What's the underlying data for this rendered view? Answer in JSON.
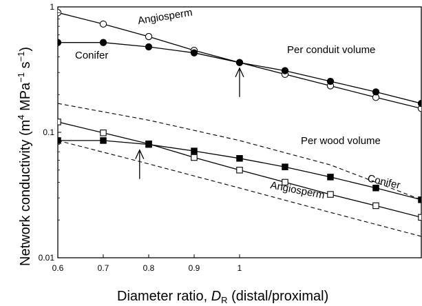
{
  "chart_data": {
    "type": "line",
    "xscale": "linear",
    "yscale": "log",
    "xlim": [
      0.6,
      1.4
    ],
    "ylim": [
      0.01,
      1
    ],
    "grid": false,
    "xlabel_main": "Diameter ratio, ",
    "xlabel_var": "D",
    "xlabel_sub": "R",
    "xlabel_tail": " (distal/proximal)",
    "ylabel_main": "Network conductivity (m",
    "ylabel_sup1": "4",
    "ylabel_mid": " MPa",
    "ylabel_sup2": "−1",
    "ylabel_s": " s",
    "ylabel_sup3": "−1",
    "ylabel_close": ")",
    "xticks": [
      {
        "v": 0.6,
        "label": "0.6"
      },
      {
        "v": 0.7,
        "label": "0.7"
      },
      {
        "v": 0.8,
        "label": "0.8"
      },
      {
        "v": 0.9,
        "label": "0.9"
      },
      {
        "v": 1.0,
        "label": "1"
      }
    ],
    "yticks": [
      {
        "v": 1,
        "label": "1"
      },
      {
        "v": 0.1,
        "label": "0.1"
      },
      {
        "v": 0.01,
        "label": "0.01"
      }
    ],
    "series": [
      {
        "name": "Angiosperm",
        "group": "per-conduit",
        "marker": "open-circle",
        "x": [
          0.6,
          0.7,
          0.8,
          0.9,
          1.0,
          1.1,
          1.2,
          1.3,
          1.4
        ],
        "y": [
          0.9,
          0.73,
          0.58,
          0.45,
          0.36,
          0.29,
          0.235,
          0.19,
          0.155
        ]
      },
      {
        "name": "Conifer",
        "group": "per-conduit",
        "marker": "filled-circle",
        "x": [
          0.6,
          0.7,
          0.8,
          0.9,
          1.0,
          1.1,
          1.2,
          1.3,
          1.4
        ],
        "y": [
          0.52,
          0.52,
          0.48,
          0.43,
          0.36,
          0.31,
          0.255,
          0.21,
          0.17
        ]
      },
      {
        "name": "Angiosperm",
        "group": "per-wood",
        "marker": "open-square",
        "x": [
          0.6,
          0.7,
          0.8,
          0.9,
          1.0,
          1.1,
          1.2,
          1.3,
          1.4
        ],
        "y": [
          0.121,
          0.099,
          0.081,
          0.063,
          0.05,
          0.04,
          0.032,
          0.026,
          0.021
        ]
      },
      {
        "name": "Conifer",
        "group": "per-wood",
        "marker": "filled-square",
        "x": [
          0.6,
          0.7,
          0.8,
          0.9,
          1.0,
          1.1,
          1.2,
          1.3,
          1.4
        ],
        "y": [
          0.086,
          0.086,
          0.08,
          0.071,
          0.062,
          0.053,
          0.044,
          0.036,
          0.029
        ]
      },
      {
        "name": "",
        "group": "per-wood-bound",
        "marker": "dashed",
        "x": [
          0.6,
          0.8,
          1.0,
          1.2,
          1.4
        ],
        "y": [
          0.17,
          0.125,
          0.086,
          0.055,
          0.029
        ]
      },
      {
        "name": "",
        "group": "per-wood-bound",
        "marker": "dashed",
        "x": [
          0.6,
          0.8,
          1.0,
          1.2,
          1.4
        ],
        "y": [
          0.086,
          0.056,
          0.036,
          0.023,
          0.0148
        ]
      }
    ],
    "annotations": {
      "per_conduit": "Per conduit volume",
      "per_wood": "Per wood volume",
      "angio_top": "Angiosperm",
      "conifer_top": "Conifer",
      "conifer_bottom": "Conifer",
      "angio_bottom": "Angiosperm"
    },
    "arrows": [
      {
        "x": 1.0,
        "y": 0.36
      },
      {
        "x": 0.78,
        "y": 0.08
      }
    ]
  }
}
